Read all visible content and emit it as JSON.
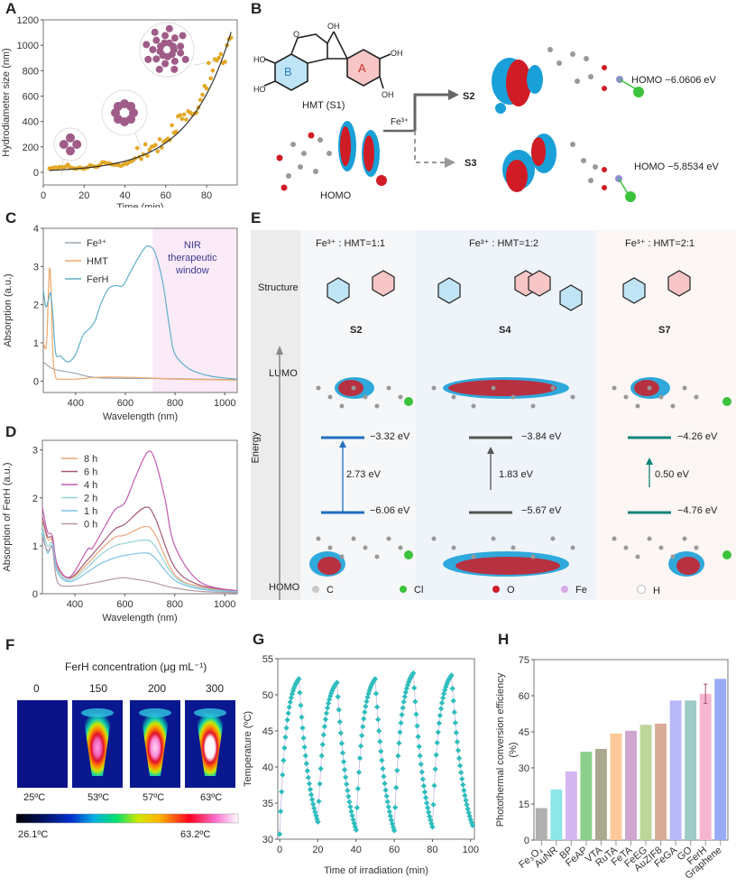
{
  "panels": {
    "A": "A",
    "B": "B",
    "C": "C",
    "D": "D",
    "E": "E",
    "F": "F",
    "G": "G",
    "H": "H"
  },
  "panelB": {
    "molecule_label": "HMT (S1)",
    "ring_a": "A",
    "ring_b": "B",
    "homo_label": "HOMO",
    "reagent": "Fe³⁺",
    "branch_top": "S2",
    "branch_bottom": "S3",
    "s2_homo": "HOMO −6.0606 eV",
    "s3_homo": "HOMO −5.8534 eV"
  },
  "panelE": {
    "structure_label": "Structure",
    "lumo_label": "LUMO",
    "homo_label": "HOMO",
    "energy_label": "Energy",
    "columns": [
      {
        "ratio": "Fe³⁺ : HMT=1:1",
        "name": "S2",
        "lumo": "−3.32 eV",
        "homo": "−6.06 eV",
        "gap": "2.73 eV",
        "color": "#1f6fc0",
        "bg": "#f6f7f9"
      },
      {
        "ratio": "Fe³⁺ : HMT=1:2",
        "name": "S4",
        "lumo": "−3.84 eV",
        "homo": "−5.67 eV",
        "gap": "1.83 eV",
        "color": "#555555",
        "bg": "#eef4fa"
      },
      {
        "ratio": "Fe³⁺ : HMT=2:1",
        "name": "S7",
        "lumo": "−4.26 eV",
        "homo": "−4.76 eV",
        "gap": "0.50 eV",
        "color": "#13857a",
        "bg": "#fcf6f4"
      }
    ],
    "atom_legend": [
      {
        "symbol": "C",
        "color": "#c8c8c8"
      },
      {
        "symbol": "Cl",
        "color": "#3cc23c"
      },
      {
        "symbol": "O",
        "color": "#d0202a"
      },
      {
        "symbol": "Fe",
        "color": "#d7a8e8"
      },
      {
        "symbol": "H",
        "color": "#ffffff"
      }
    ]
  },
  "panelF": {
    "title": "FerH concentration (μg mL⁻¹)",
    "concentrations": [
      "0",
      "150",
      "200",
      "300"
    ],
    "temperatures": [
      "25ºC",
      "53ºC",
      "57ºC",
      "63ºC"
    ],
    "scale_min": "26.1ºC",
    "scale_max": "63.2ºC"
  },
  "chart_data": [
    {
      "id": "A",
      "type": "scatter",
      "title": "",
      "xlabel": "Time (min)",
      "ylabel": "Hydrodiameter size (nm)",
      "xlim": [
        0,
        95
      ],
      "ylim": [
        -100,
        1200
      ],
      "xticks": [
        0,
        20,
        40,
        60,
        80
      ],
      "yticks": [
        0,
        200,
        400,
        600,
        800,
        1000,
        1200
      ],
      "point_color": "#e3a826",
      "fit_color": "#333333",
      "fit": {
        "model": "exponential",
        "a": 12.5,
        "b": 0.0487
      },
      "x": [
        3,
        4,
        5,
        6,
        7,
        8,
        9,
        10,
        11,
        12,
        13,
        14,
        15,
        16,
        17,
        18,
        19,
        20,
        21,
        22,
        23,
        24,
        25,
        26,
        27,
        28,
        29,
        30,
        31,
        32,
        33,
        34,
        35,
        36,
        37,
        38,
        39,
        40,
        41,
        42,
        43,
        44,
        45,
        46,
        47,
        48,
        49,
        50,
        51,
        52,
        53,
        54,
        55,
        56,
        57,
        58,
        59,
        60,
        61,
        62,
        63,
        64,
        65,
        66,
        67,
        68,
        69,
        70,
        71,
        72,
        73,
        74,
        75,
        76,
        77,
        78,
        79,
        80,
        81,
        82,
        83,
        84,
        85,
        86,
        87,
        88,
        89,
        90,
        91,
        92
      ],
      "y": [
        30,
        32,
        35,
        38,
        36,
        40,
        42,
        38,
        45,
        60,
        40,
        35,
        30,
        28,
        32,
        38,
        30,
        28,
        35,
        40,
        55,
        50,
        45,
        42,
        48,
        60,
        80,
        78,
        70,
        72,
        65,
        60,
        58,
        62,
        55,
        50,
        58,
        70,
        65,
        80,
        85,
        95,
        110,
        190,
        120,
        105,
        140,
        220,
        130,
        175,
        200,
        205,
        215,
        165,
        260,
        195,
        240,
        250,
        265,
        255,
        370,
        310,
        320,
        440,
        450,
        420,
        455,
        415,
        480,
        470,
        455,
        460,
        470,
        510,
        570,
        610,
        680,
        660,
        860,
        740,
        800,
        890,
        880,
        900,
        930,
        860,
        870,
        1000,
        1050,
        1060
      ]
    },
    {
      "id": "C",
      "type": "line",
      "xlabel": "Wavelength (nm)",
      "ylabel": "Absorption (a.u.)",
      "xlim": [
        270,
        1050
      ],
      "ylim": [
        -0.3,
        4
      ],
      "xticks": [
        400,
        600,
        800,
        1000
      ],
      "yticks": [
        0,
        1,
        2,
        3,
        4
      ],
      "shaded_region": {
        "x": [
          710,
          1050
        ],
        "label": "NIR therapeutic window",
        "color": "#fbeaf7",
        "text_color": "#3b3a8e"
      },
      "series": [
        {
          "name": "Fe³⁺",
          "color": "#9aa7b3",
          "x": [
            270,
            300,
            330,
            360,
            400,
            450,
            500,
            600,
            700,
            800,
            900,
            1000,
            1050
          ],
          "y": [
            0.5,
            0.35,
            0.28,
            0.25,
            0.2,
            0.12,
            0.08,
            0.07,
            0.07,
            0.06,
            0.05,
            0.04,
            0.03
          ]
        },
        {
          "name": "HMT",
          "color": "#f0a768",
          "x": [
            270,
            280,
            285,
            290,
            295,
            300,
            305,
            310,
            320,
            330,
            360,
            400,
            500,
            600,
            700,
            800,
            900,
            1000,
            1050
          ],
          "y": [
            1.0,
            0.85,
            1.2,
            2.2,
            2.95,
            2.6,
            1.5,
            0.5,
            0.1,
            0.05,
            0.05,
            0.05,
            0.1,
            0.1,
            0.08,
            0.05,
            0.04,
            0.03,
            0.02
          ]
        },
        {
          "name": "FerH",
          "color": "#5fb0c9",
          "x": [
            270,
            280,
            290,
            300,
            310,
            320,
            340,
            370,
            400,
            430,
            460,
            480,
            500,
            530,
            560,
            590,
            620,
            650,
            680,
            700,
            720,
            750,
            780,
            800,
            850,
            900,
            950,
            1000,
            1050
          ],
          "y": [
            2.4,
            1.95,
            2.1,
            2.3,
            1.6,
            0.72,
            0.65,
            0.5,
            0.7,
            1.2,
            1.4,
            1.6,
            2.0,
            2.4,
            2.5,
            2.5,
            2.85,
            3.2,
            3.5,
            3.52,
            3.35,
            2.6,
            1.3,
            0.7,
            0.35,
            0.2,
            0.12,
            0.08,
            0.05
          ]
        }
      ]
    },
    {
      "id": "D",
      "type": "line",
      "xlabel": "Wavelength (nm)",
      "ylabel": "Absorption of FerH (a.u.)",
      "xlim": [
        270,
        1050
      ],
      "ylim": [
        0,
        3.2
      ],
      "xticks": [
        400,
        600,
        800,
        1000
      ],
      "yticks": [
        0,
        1,
        2,
        3
      ],
      "series": [
        {
          "name": "8 h",
          "color": "#e8a77a",
          "x": [
            270,
            290,
            310,
            330,
            380,
            450,
            500,
            560,
            600,
            680,
            720,
            800,
            900,
            1050
          ],
          "y": [
            1.55,
            1.15,
            1.1,
            0.55,
            0.32,
            0.62,
            0.9,
            1.18,
            1.22,
            1.4,
            1.25,
            0.4,
            0.15,
            0.05
          ]
        },
        {
          "name": "6 h",
          "color": "#a35a72",
          "x": [
            270,
            290,
            310,
            330,
            380,
            450,
            500,
            560,
            600,
            680,
            720,
            800,
            900,
            1050
          ],
          "y": [
            1.6,
            1.2,
            1.15,
            0.58,
            0.33,
            0.7,
            1.0,
            1.35,
            1.45,
            1.8,
            1.6,
            0.55,
            0.18,
            0.06
          ]
        },
        {
          "name": "4 h",
          "color": "#c25bb0",
          "x": [
            270,
            290,
            310,
            330,
            380,
            450,
            470,
            520,
            560,
            600,
            640,
            690,
            720,
            760,
            800,
            900,
            1050
          ],
          "y": [
            1.8,
            1.3,
            1.2,
            0.6,
            0.35,
            0.92,
            0.95,
            1.4,
            1.75,
            1.9,
            2.4,
            2.95,
            2.8,
            2.0,
            1.0,
            0.25,
            0.06
          ]
        },
        {
          "name": "2 h",
          "color": "#93d3d8",
          "x": [
            270,
            290,
            310,
            330,
            380,
            450,
            500,
            560,
            600,
            680,
            720,
            800,
            900,
            1050
          ],
          "y": [
            1.4,
            1.0,
            1.05,
            0.5,
            0.28,
            0.55,
            0.8,
            1.0,
            1.05,
            1.12,
            1.0,
            0.35,
            0.12,
            0.04
          ]
        },
        {
          "name": "1 h",
          "color": "#7fc2e4",
          "x": [
            270,
            290,
            310,
            330,
            380,
            450,
            500,
            560,
            600,
            680,
            720,
            800,
            900,
            1050
          ],
          "y": [
            1.3,
            0.85,
            1.0,
            0.45,
            0.25,
            0.45,
            0.62,
            0.75,
            0.8,
            0.85,
            0.75,
            0.28,
            0.1,
            0.03
          ]
        },
        {
          "name": "0 h",
          "color": "#b49aa8",
          "x": [
            270,
            290,
            310,
            330,
            380,
            450,
            500,
            580,
            620,
            700,
            800,
            900,
            1050
          ],
          "y": [
            1.2,
            0.9,
            0.95,
            0.25,
            0.16,
            0.2,
            0.25,
            0.33,
            0.32,
            0.25,
            0.12,
            0.05,
            0.02
          ]
        }
      ]
    },
    {
      "id": "G",
      "type": "scatter",
      "xlabel": "Time of irradiation  (min)",
      "ylabel": "Temperature (ºC)",
      "xlim": [
        -1,
        102
      ],
      "ylim": [
        30,
        55
      ],
      "xticks": [
        0,
        20,
        40,
        60,
        80,
        100
      ],
      "yticks": [
        30,
        35,
        40,
        45,
        50,
        55
      ],
      "color": "#2fbdbd",
      "cycles": [
        {
          "heat_start": [
            0,
            30.7
          ],
          "peak": [
            10,
            52.2
          ],
          "cool_end": [
            20,
            32.4
          ]
        },
        {
          "heat_start": [
            20,
            32.4
          ],
          "peak": [
            30,
            51.7
          ],
          "cool_end": [
            40,
            31.3
          ]
        },
        {
          "heat_start": [
            40,
            31.3
          ],
          "peak": [
            50,
            52.2
          ],
          "cool_end": [
            60,
            31.2
          ]
        },
        {
          "heat_start": [
            60,
            31.2
          ],
          "peak": [
            70,
            53.0
          ],
          "cool_end": [
            80,
            31.7
          ]
        },
        {
          "heat_start": [
            80,
            31.7
          ],
          "peak": [
            90,
            52.7
          ],
          "cool_end": [
            101,
            31.9
          ]
        }
      ],
      "sample_interval_min": 0.5
    },
    {
      "id": "H",
      "type": "bar",
      "xlabel": "",
      "ylabel": "Photothermal conversion efficiency (%)",
      "ylim": [
        0,
        75
      ],
      "yticks": [
        0,
        15,
        30,
        45,
        60,
        75
      ],
      "categories": [
        "Fe₃O₄",
        "AuNR",
        "BP",
        "FeAP",
        "VTA",
        "RuTA",
        "FeTA",
        "FeEG",
        "AuZIF8",
        "FeGA",
        "GO",
        "FerH",
        "Graphene"
      ],
      "values": [
        13.3,
        21.0,
        28.5,
        36.7,
        37.9,
        44.3,
        45.4,
        47.9,
        48.4,
        58.0,
        58.0,
        60.8,
        67.0
      ],
      "errors": [
        null,
        null,
        null,
        null,
        null,
        null,
        null,
        null,
        null,
        null,
        null,
        4.0,
        null
      ],
      "colors": [
        "#b0b0b0",
        "#8de6e8",
        "#d4b6f0",
        "#8ccf8c",
        "#aaa88e",
        "#fbc99a",
        "#cfa6d0",
        "#bdd697",
        "#d8ac98",
        "#b8b8f8",
        "#9fc9c6",
        "#f7b6d0",
        "#98acf5"
      ]
    }
  ]
}
